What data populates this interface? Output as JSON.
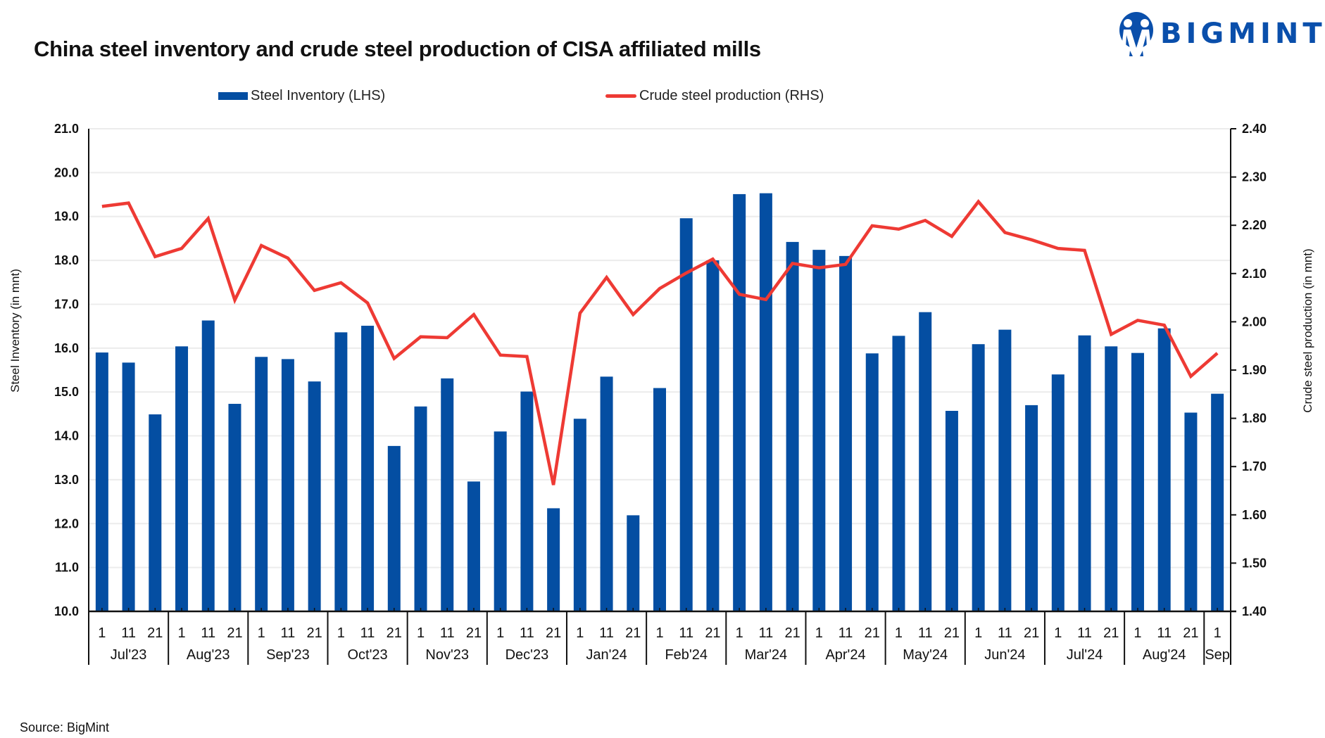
{
  "brand": {
    "name": "BIGMINT",
    "color": "#0a4fab"
  },
  "source": "Source: BigMint",
  "chart_data": {
    "type": "bar+line",
    "title": "China steel inventory and crude steel production of CISA affiliated mills",
    "ylabel_left": "Steel Inventory (in mnt)",
    "ylabel_right": "Crude steel production (in mnt)",
    "ylim_left": [
      10.0,
      21.0
    ],
    "ylim_right": [
      1.4,
      2.4
    ],
    "yticks_left": [
      "10.0",
      "11.0",
      "12.0",
      "13.0",
      "14.0",
      "15.0",
      "16.0",
      "17.0",
      "18.0",
      "19.0",
      "20.0",
      "21.0"
    ],
    "yticks_right": [
      "1.40",
      "1.50",
      "1.60",
      "1.70",
      "1.80",
      "1.90",
      "2.00",
      "2.10",
      "2.20",
      "2.30",
      "2.40"
    ],
    "grid": true,
    "legend_position": "top",
    "categories": [
      "1",
      "11",
      "21",
      "1",
      "11",
      "21",
      "1",
      "11",
      "21",
      "1",
      "11",
      "21",
      "1",
      "11",
      "21",
      "1",
      "11",
      "21",
      "1",
      "11",
      "21",
      "1",
      "11",
      "21",
      "1",
      "11",
      "21",
      "1",
      "11",
      "21",
      "1",
      "11",
      "21",
      "1",
      "11",
      "21",
      "1",
      "11",
      "21",
      "1",
      "11",
      "21",
      "1"
    ],
    "months": [
      {
        "label": "Jul'23",
        "span": 3
      },
      {
        "label": "Aug'23",
        "span": 3
      },
      {
        "label": "Sep'23",
        "span": 3
      },
      {
        "label": "Oct'23",
        "span": 3
      },
      {
        "label": "Nov'23",
        "span": 3
      },
      {
        "label": "Dec'23",
        "span": 3
      },
      {
        "label": "Jan'24",
        "span": 3
      },
      {
        "label": "Feb'24",
        "span": 3
      },
      {
        "label": "Mar'24",
        "span": 3
      },
      {
        "label": "Apr'24",
        "span": 3
      },
      {
        "label": "May'24",
        "span": 3
      },
      {
        "label": "Jun'24",
        "span": 3
      },
      {
        "label": "Jul'24",
        "span": 3
      },
      {
        "label": "Aug'24",
        "span": 3
      },
      {
        "label": "Sep",
        "span": 1
      }
    ],
    "series": [
      {
        "name": "Steel Inventory (LHS)",
        "type": "bar",
        "axis": "left",
        "color": "#044ea2",
        "values": [
          15.9,
          15.67,
          14.49,
          16.04,
          16.63,
          14.73,
          15.8,
          15.75,
          15.24,
          16.36,
          16.51,
          13.77,
          14.67,
          15.31,
          12.96,
          14.1,
          15.01,
          12.35,
          14.39,
          15.35,
          12.19,
          15.09,
          18.96,
          18.0,
          19.51,
          19.53,
          18.42,
          18.24,
          18.1,
          15.88,
          16.28,
          16.82,
          14.57,
          16.09,
          16.42,
          14.7,
          15.4,
          16.29,
          16.04,
          15.89,
          16.45,
          14.53,
          14.96
        ]
      },
      {
        "name": "Crude steel production (RHS)",
        "type": "line",
        "axis": "right",
        "color": "#ee3a34",
        "values": [
          2.239,
          2.246,
          2.135,
          2.152,
          2.214,
          2.045,
          2.158,
          2.132,
          2.065,
          2.081,
          2.039,
          1.924,
          1.969,
          1.967,
          2.015,
          1.931,
          1.928,
          1.662,
          2.018,
          2.092,
          2.015,
          2.069,
          2.101,
          2.13,
          2.057,
          2.046,
          2.121,
          2.112,
          2.119,
          2.199,
          2.192,
          2.21,
          2.177,
          2.249,
          2.185,
          2.17,
          2.152,
          2.148,
          1.974,
          2.003,
          1.993,
          1.887,
          1.935
        ]
      }
    ]
  }
}
